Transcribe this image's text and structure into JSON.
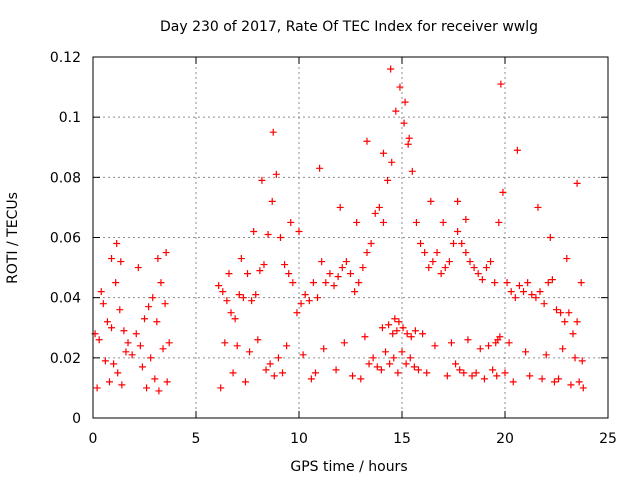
{
  "chart_data": {
    "type": "scatter",
    "title": "Day 230 of 2017, Rate Of TEC Index for receiver wwlg",
    "xlabel": "GPS time / hours",
    "ylabel": "ROTI / TECUs",
    "xlim": [
      0,
      25
    ],
    "ylim": [
      0,
      0.12
    ],
    "x_ticks": [
      0,
      5,
      10,
      15,
      20,
      25
    ],
    "x_tick_labels": [
      "0",
      "5",
      "10",
      "15",
      "20",
      "25"
    ],
    "y_ticks": [
      0,
      0.02,
      0.04,
      0.06,
      0.08,
      0.1,
      0.12
    ],
    "y_tick_labels": [
      "0",
      "0.02",
      "0.04",
      "0.06",
      "0.08",
      "0.1",
      "0.12"
    ],
    "grid": true,
    "legend": "none",
    "marker": "+",
    "series": [
      {
        "color": "#ff0000",
        "x": [
          0.1,
          0.3,
          0.5,
          0.7,
          0.9,
          1.1,
          1.3,
          1.5,
          1.7,
          1.9,
          2.1,
          2.3,
          2.5,
          2.7,
          2.9,
          3.1,
          3.3,
          3.5,
          3.7,
          6.1,
          6.3,
          6.5,
          6.7,
          6.9,
          7.1,
          7.3,
          7.5,
          7.7,
          7.9,
          8.1,
          8.3,
          8.5,
          8.7,
          8.9,
          9.1,
          9.3,
          9.5,
          9.7,
          9.9,
          10.1,
          10.3,
          10.5,
          10.7,
          10.9,
          11.1,
          11.3,
          11.5,
          11.7,
          11.9,
          12.1,
          12.3,
          12.5,
          12.7,
          12.9,
          13.1,
          13.3,
          13.5,
          13.7,
          13.9,
          14.1,
          14.3,
          14.5,
          14.7,
          14.9,
          15.1,
          15.3,
          15.5,
          15.7,
          15.9,
          16.1,
          16.3,
          16.5,
          16.7,
          16.9,
          17.1,
          17.3,
          17.5,
          17.7,
          17.9,
          18.1,
          18.3,
          18.5,
          18.7,
          18.9,
          19.1,
          19.3,
          19.5,
          19.7,
          19.9,
          20.1,
          20.3,
          20.5,
          20.7,
          20.9,
          21.1,
          21.3,
          21.5,
          21.7,
          21.9,
          22.1,
          22.3,
          22.5,
          22.7,
          22.9,
          23.1,
          23.3,
          23.5,
          23.7,
          0.2,
          0.8,
          1.0,
          1.2,
          1.4,
          2.6,
          3.0,
          3.2,
          3.6,
          6.2,
          6.8,
          7.4,
          8.4,
          8.6,
          8.8,
          9.0,
          9.2,
          10.6,
          10.8,
          11.8,
          12.6,
          13.0,
          13.4,
          13.6,
          13.8,
          14.0,
          14.2,
          14.4,
          14.6,
          14.8,
          15.0,
          15.2,
          15.4,
          15.6,
          15.8,
          16.2,
          17.2,
          17.6,
          17.8,
          18.0,
          18.4,
          18.6,
          19.0,
          19.4,
          19.6,
          20.0,
          20.4,
          21.2,
          21.8,
          22.4,
          22.6,
          23.2,
          23.6,
          23.8,
          0.6,
          1.6,
          2.4,
          2.8,
          3.4,
          6.4,
          7.0,
          7.6,
          8.0,
          9.4,
          10.2,
          11.2,
          12.2,
          13.2,
          14.05,
          14.35,
          14.55,
          14.65,
          14.75,
          14.85,
          15.05,
          15.25,
          15.45,
          15.65,
          16.0,
          16.6,
          17.4,
          18.2,
          18.8,
          19.2,
          19.55,
          19.65,
          19.75,
          20.2,
          21.0,
          22.0,
          22.8,
          23.4,
          23.75,
          0.4,
          0.9,
          1.15,
          1.35,
          2.2,
          3.15,
          3.55,
          6.6,
          7.2,
          7.8,
          8.2,
          8.75,
          9.6,
          10.0,
          11.0,
          12.0,
          12.8,
          13.3,
          14.1,
          14.45,
          15.15,
          15.35,
          16.4,
          17.0,
          17.7,
          18.1,
          19.8,
          20.6,
          21.6,
          22.2,
          23.0,
          23.5
        ],
        "y": [
          0.028,
          0.026,
          0.038,
          0.032,
          0.03,
          0.045,
          0.036,
          0.029,
          0.025,
          0.021,
          0.028,
          0.024,
          0.033,
          0.037,
          0.04,
          0.032,
          0.045,
          0.038,
          0.025,
          0.044,
          0.042,
          0.039,
          0.035,
          0.033,
          0.041,
          0.04,
          0.048,
          0.039,
          0.041,
          0.049,
          0.051,
          0.061,
          0.072,
          0.081,
          0.06,
          0.051,
          0.048,
          0.045,
          0.035,
          0.038,
          0.041,
          0.039,
          0.045,
          0.04,
          0.052,
          0.045,
          0.048,
          0.044,
          0.047,
          0.05,
          0.052,
          0.048,
          0.042,
          0.045,
          0.05,
          0.055,
          0.058,
          0.068,
          0.07,
          0.065,
          0.079,
          0.085,
          0.102,
          0.11,
          0.098,
          0.091,
          0.082,
          0.065,
          0.058,
          0.055,
          0.05,
          0.052,
          0.055,
          0.048,
          0.05,
          0.052,
          0.058,
          0.062,
          0.058,
          0.055,
          0.052,
          0.05,
          0.048,
          0.046,
          0.05,
          0.052,
          0.045,
          0.065,
          0.075,
          0.045,
          0.042,
          0.04,
          0.044,
          0.042,
          0.045,
          0.041,
          0.04,
          0.042,
          0.038,
          0.045,
          0.046,
          0.036,
          0.035,
          0.032,
          0.035,
          0.028,
          0.032,
          0.045,
          0.01,
          0.012,
          0.018,
          0.015,
          0.011,
          0.01,
          0.013,
          0.009,
          0.012,
          0.01,
          0.015,
          0.012,
          0.016,
          0.018,
          0.014,
          0.02,
          0.015,
          0.013,
          0.015,
          0.016,
          0.014,
          0.013,
          0.018,
          0.02,
          0.017,
          0.016,
          0.022,
          0.018,
          0.02,
          0.015,
          0.022,
          0.018,
          0.02,
          0.017,
          0.016,
          0.015,
          0.014,
          0.018,
          0.016,
          0.015,
          0.014,
          0.015,
          0.013,
          0.016,
          0.014,
          0.015,
          0.012,
          0.014,
          0.013,
          0.012,
          0.013,
          0.011,
          0.012,
          0.01,
          0.019,
          0.022,
          0.017,
          0.02,
          0.023,
          0.025,
          0.024,
          0.022,
          0.026,
          0.024,
          0.021,
          0.023,
          0.025,
          0.027,
          0.03,
          0.031,
          0.028,
          0.033,
          0.029,
          0.032,
          0.03,
          0.028,
          0.027,
          0.029,
          0.028,
          0.024,
          0.025,
          0.026,
          0.023,
          0.024,
          0.025,
          0.026,
          0.027,
          0.025,
          0.022,
          0.021,
          0.023,
          0.02,
          0.019,
          0.042,
          0.053,
          0.058,
          0.052,
          0.05,
          0.053,
          0.055,
          0.048,
          0.053,
          0.062,
          0.079,
          0.095,
          0.065,
          0.062,
          0.083,
          0.07,
          0.065,
          0.092,
          0.088,
          0.116,
          0.105,
          0.093,
          0.072,
          0.065,
          0.072,
          0.066,
          0.111,
          0.089,
          0.07,
          0.06,
          0.053,
          0.078
        ]
      }
    ]
  }
}
